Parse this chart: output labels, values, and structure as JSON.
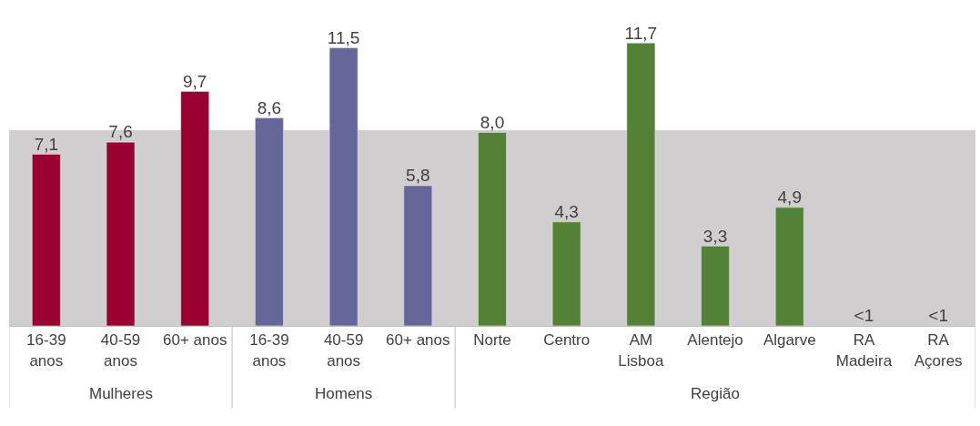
{
  "chart_data": {
    "type": "bar",
    "categories": [
      "16-39 anos",
      "40-59 anos",
      "60+ anos",
      "16-39 anos",
      "40-59 anos",
      "60+ anos",
      "Norte",
      "Centro",
      "AM Lisboa",
      "Alentejo",
      "Algarve",
      "RA Madeira",
      "RA Açores"
    ],
    "series": [
      {
        "color": "#9b0033",
        "values": [
          7.1,
          7.6,
          9.7,
          null,
          null,
          null,
          null,
          null,
          null,
          null,
          null,
          null,
          null
        ],
        "value_labels": [
          "7,1",
          "7,6",
          "9,7",
          null,
          null,
          null,
          null,
          null,
          null,
          null,
          null,
          null,
          null
        ]
      },
      {
        "color": "#666699",
        "values": [
          null,
          null,
          null,
          8.6,
          11.5,
          5.8,
          null,
          null,
          null,
          null,
          null,
          null,
          null
        ],
        "value_labels": [
          null,
          null,
          null,
          "8,6",
          "11,5",
          "5,8",
          null,
          null,
          null,
          null,
          null,
          null,
          null
        ]
      },
      {
        "color": "#538135",
        "values": [
          null,
          null,
          null,
          null,
          null,
          null,
          8.0,
          4.3,
          11.7,
          3.3,
          4.9,
          null,
          null
        ],
        "value_labels": [
          null,
          null,
          null,
          null,
          null,
          null,
          "8,0",
          "4,3",
          "11,7",
          "3,3",
          "4,9",
          "<1",
          "<1"
        ]
      }
    ],
    "annotations": [
      "Mulheres",
      "Homens",
      "Região"
    ],
    "bands": [
      {
        "axis": "y",
        "from": 0,
        "to": 8.1,
        "color": "#d0cecf"
      }
    ],
    "legend": false,
    "grid": false
  }
}
